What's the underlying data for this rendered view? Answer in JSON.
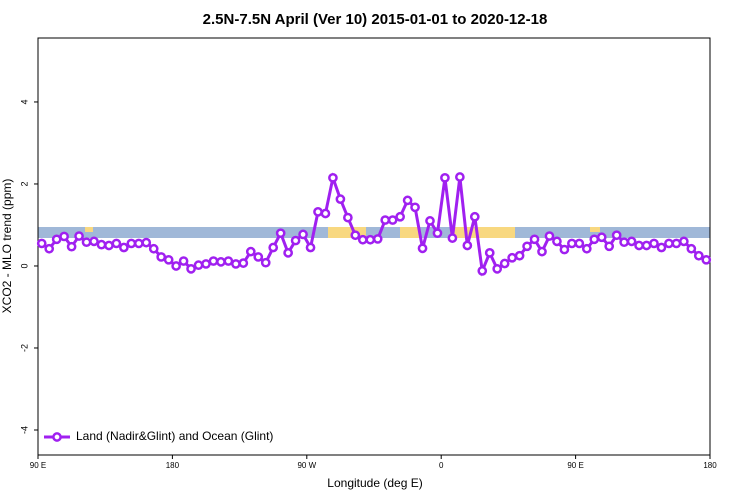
{
  "chart_data": {
    "type": "line",
    "title": "2.5N-7.5N April (Ver 10)   2015-01-01 to 2020-12-18",
    "x_label": "Longitude (deg E)",
    "y_label": "XCO2 - MLO trend (ppm)",
    "xlim": [
      90,
      540
    ],
    "ylim": [
      -4.61,
      5.56
    ],
    "xticks": [
      {
        "value": 90,
        "label": "90 E"
      },
      {
        "value": 180,
        "label": "180"
      },
      {
        "value": 270,
        "label": "90 W"
      },
      {
        "value": 360,
        "label": "0"
      },
      {
        "value": 450,
        "label": "90 E"
      },
      {
        "value": 540,
        "label": "180"
      }
    ],
    "yticks": [
      -4,
      -2,
      0,
      2,
      4
    ],
    "legend_position": "bottom-left",
    "x": [
      92.5,
      97.5,
      102.5,
      107.5,
      112.5,
      117.5,
      122.5,
      127.5,
      132.5,
      137.5,
      142.5,
      147.5,
      152.5,
      157.5,
      162.5,
      167.5,
      172.5,
      177.5,
      182.5,
      187.5,
      192.5,
      197.5,
      202.5,
      207.5,
      212.5,
      217.5,
      222.5,
      227.5,
      232.5,
      237.5,
      242.5,
      247.5,
      252.5,
      257.5,
      262.5,
      267.5,
      272.5,
      277.5,
      282.5,
      287.5,
      292.5,
      297.5,
      302.5,
      307.5,
      312.5,
      317.5,
      322.5,
      327.5,
      332.5,
      337.5,
      342.5,
      347.5,
      352.5,
      357.5,
      362.5,
      367.5,
      372.5,
      377.5,
      382.5,
      387.5,
      392.5,
      397.5,
      402.5,
      407.5,
      412.5,
      417.5,
      422.5,
      427.5,
      432.5,
      437.5,
      442.5,
      447.5,
      452.5,
      457.5,
      462.5,
      467.5,
      472.5,
      477.5,
      482.5,
      487.5,
      492.5,
      497.5,
      502.5,
      507.5,
      512.5,
      517.5,
      522.5,
      527.5,
      532.5,
      537.5
    ],
    "series": [
      {
        "name": "Land (Nadir&Glint) and Ocean (Glint)",
        "color": "#a020f0",
        "values": [
          0.55,
          0.42,
          0.65,
          0.72,
          0.47,
          0.73,
          0.58,
          0.6,
          0.52,
          0.5,
          0.55,
          0.45,
          0.55,
          0.55,
          0.57,
          0.42,
          0.22,
          0.15,
          0.0,
          0.12,
          -0.07,
          0.02,
          0.05,
          0.12,
          0.1,
          0.12,
          0.05,
          0.07,
          0.35,
          0.22,
          0.08,
          0.45,
          0.8,
          0.32,
          0.62,
          0.77,
          0.45,
          1.32,
          1.28,
          2.15,
          1.63,
          1.18,
          0.75,
          0.64,
          0.64,
          0.66,
          1.12,
          1.12,
          1.2,
          1.6,
          1.43,
          0.43,
          1.1,
          0.8,
          2.15,
          0.68,
          2.17,
          0.5,
          1.2,
          -0.12,
          0.32,
          -0.07,
          0.06,
          0.2,
          0.25,
          0.48,
          0.65,
          0.35,
          0.73,
          0.6,
          0.4,
          0.55,
          0.55,
          0.42,
          0.65,
          0.7,
          0.48,
          0.75,
          0.58,
          0.6,
          0.5,
          0.5,
          0.55,
          0.45,
          0.55,
          0.55,
          0.6,
          0.42,
          0.25,
          0.15
        ]
      }
    ]
  }
}
